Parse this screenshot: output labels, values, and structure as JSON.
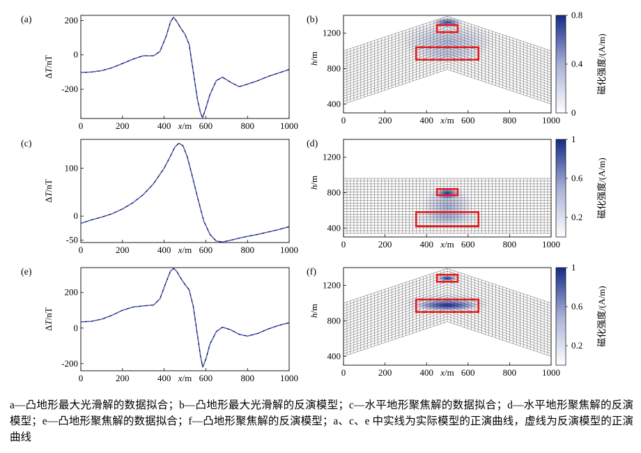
{
  "caption": "a—凸地形最大光滑解的数据拟合；b—凸地形最大光滑解的反演模型；c—水平地形聚焦解的数据拟合；d—水平地形聚焦解的反演模型；e—凸地形聚焦解的数据拟合；f—凸地形聚焦解的反演模型；a、c、e 中实线为实际模型的正演曲线，虚线为反演模型的正演曲线",
  "colors": {
    "solid": "#000000",
    "dashed": "#4d5ee8",
    "box": "#e3191b",
    "cmap_high": "#142a87",
    "grid": "#333333"
  },
  "chart_data": [
    {
      "id": "a",
      "label": "(a)",
      "type": "line",
      "xlabel_italic": "x",
      "xlabel_unit": "/m",
      "ylabel_prefix": "Δ",
      "ylabel_italic": "T",
      "ylabel_unit": "/nT",
      "xlim": [
        0,
        1000
      ],
      "ylim": [
        -370,
        230
      ],
      "xticks": [
        0,
        200,
        400,
        600,
        800,
        1000
      ],
      "yticks": [
        -200,
        0,
        200
      ],
      "x": [
        0,
        50,
        100,
        150,
        200,
        250,
        300,
        350,
        380,
        410,
        430,
        445,
        460,
        480,
        500,
        520,
        540,
        560,
        575,
        585,
        600,
        620,
        650,
        680,
        720,
        760,
        800,
        850,
        900,
        950,
        1000
      ],
      "series": [
        {
          "style": "solid",
          "values": [
            -102,
            -100,
            -92,
            -75,
            -50,
            -25,
            -5,
            -5,
            20,
            110,
            190,
            220,
            195,
            155,
            120,
            60,
            -100,
            -260,
            -340,
            -365,
            -310,
            -230,
            -150,
            -130,
            -160,
            -185,
            -170,
            -150,
            -125,
            -105,
            -85
          ]
        },
        {
          "style": "dashed",
          "values": [
            -102,
            -100,
            -92,
            -75,
            -50,
            -25,
            -5,
            -5,
            20,
            110,
            190,
            220,
            195,
            155,
            120,
            60,
            -100,
            -260,
            -340,
            -365,
            -310,
            -230,
            -150,
            -130,
            -160,
            -185,
            -170,
            -150,
            -125,
            -105,
            -85
          ]
        }
      ]
    },
    {
      "id": "b",
      "label": "(b)",
      "type": "heatmap",
      "terrain": "convex",
      "xlabel_italic": "x",
      "xlabel_unit": "/m",
      "ylabel_italic": "h",
      "ylabel_unit": "/m",
      "xlim": [
        0,
        1000
      ],
      "ylim": [
        300,
        1400
      ],
      "xticks": [
        0,
        200,
        400,
        600,
        800,
        1000
      ],
      "yticks": [
        400,
        800,
        1200
      ],
      "surface": [
        [
          0,
          1000
        ],
        [
          500,
          1390
        ],
        [
          1000,
          1000
        ]
      ],
      "depth": 600,
      "boxes": [
        {
          "x": [
            450,
            550
          ],
          "y": [
            1210,
            1290
          ]
        },
        {
          "x": [
            350,
            650
          ],
          "y": [
            900,
            1040
          ]
        }
      ],
      "blobs": [
        {
          "x": 500,
          "y": 1320,
          "rx": 70,
          "ry": 55,
          "v": 0.85
        },
        {
          "x": 500,
          "y": 1100,
          "rx": 230,
          "ry": 210,
          "v": 0.3
        },
        {
          "x": 500,
          "y": 950,
          "rx": 170,
          "ry": 90,
          "v": 0.18
        }
      ],
      "colorbar": {
        "title": "磁化强度/(A/m)",
        "min": 0,
        "max": 0.8,
        "ticks": [
          0,
          0.4,
          0.8
        ],
        "tick_labels": [
          "0",
          "0.4",
          "0.8"
        ]
      }
    },
    {
      "id": "c",
      "label": "(c)",
      "type": "line",
      "xlabel_italic": "x",
      "xlabel_unit": "/m",
      "ylabel_prefix": "Δ",
      "ylabel_italic": "T",
      "ylabel_unit": "/nT",
      "xlim": [
        0,
        1000
      ],
      "ylim": [
        -55,
        160
      ],
      "xticks": [
        0,
        200,
        400,
        600,
        800,
        1000
      ],
      "yticks": [
        -50,
        0,
        100
      ],
      "x": [
        0,
        50,
        100,
        150,
        200,
        250,
        300,
        350,
        400,
        430,
        450,
        470,
        490,
        510,
        530,
        560,
        590,
        620,
        650,
        680,
        720,
        760,
        800,
        850,
        900,
        950,
        1000
      ],
      "series": [
        {
          "style": "solid",
          "values": [
            -15,
            -8,
            -2,
            5,
            15,
            28,
            45,
            68,
            100,
            125,
            143,
            152,
            147,
            125,
            92,
            40,
            -10,
            -38,
            -52,
            -54,
            -50,
            -46,
            -42,
            -38,
            -33,
            -28,
            -22
          ]
        },
        {
          "style": "dashed",
          "values": [
            -15,
            -8,
            -2,
            5,
            15,
            28,
            45,
            68,
            100,
            125,
            143,
            152,
            147,
            125,
            92,
            40,
            -10,
            -38,
            -52,
            -54,
            -50,
            -46,
            -42,
            -38,
            -33,
            -28,
            -22
          ]
        }
      ]
    },
    {
      "id": "d",
      "label": "(d)",
      "type": "heatmap",
      "terrain": "flat",
      "xlabel_italic": "x",
      "xlabel_unit": "/m",
      "ylabel_italic": "h",
      "ylabel_unit": "/m",
      "xlim": [
        0,
        1000
      ],
      "ylim": [
        300,
        1400
      ],
      "xticks": [
        0,
        200,
        400,
        600,
        800,
        1000
      ],
      "yticks": [
        400,
        800,
        1200
      ],
      "surface": [
        [
          0,
          960
        ],
        [
          1000,
          960
        ]
      ],
      "depth": 620,
      "boxes": [
        {
          "x": [
            450,
            550
          ],
          "y": [
            770,
            840
          ]
        },
        {
          "x": [
            350,
            650
          ],
          "y": [
            420,
            580
          ]
        }
      ],
      "blobs": [
        {
          "x": 500,
          "y": 790,
          "rx": 55,
          "ry": 65,
          "v": 0.95
        },
        {
          "x": 500,
          "y": 650,
          "rx": 120,
          "ry": 230,
          "v": 0.35
        },
        {
          "x": 500,
          "y": 520,
          "rx": 170,
          "ry": 90,
          "v": 0.22
        }
      ],
      "colorbar": {
        "title": "磁化强度/(A/m)",
        "min": 0,
        "max": 1,
        "ticks": [
          0.2,
          0.6,
          1
        ],
        "tick_labels": [
          "0.2",
          "0.6",
          "1"
        ]
      }
    },
    {
      "id": "e",
      "label": "(e)",
      "type": "line",
      "xlabel_italic": "x",
      "xlabel_unit": "/m",
      "ylabel_prefix": "Δ",
      "ylabel_italic": "T",
      "ylabel_unit": "/nT",
      "xlim": [
        0,
        1000
      ],
      "ylim": [
        -240,
        340
      ],
      "xticks": [
        0,
        200,
        400,
        600,
        800,
        1000
      ],
      "yticks": [
        -200,
        0,
        200
      ],
      "x": [
        0,
        50,
        100,
        150,
        200,
        250,
        300,
        350,
        380,
        410,
        430,
        445,
        460,
        480,
        500,
        520,
        540,
        560,
        575,
        585,
        600,
        620,
        650,
        680,
        720,
        760,
        800,
        850,
        900,
        950,
        1000
      ],
      "series": [
        {
          "style": "solid",
          "values": [
            35,
            38,
            50,
            72,
            100,
            118,
            125,
            130,
            165,
            260,
            320,
            335,
            320,
            280,
            245,
            215,
            120,
            -40,
            -160,
            -220,
            -175,
            -90,
            -20,
            5,
            -10,
            -35,
            -45,
            -30,
            -5,
            15,
            30
          ]
        },
        {
          "style": "dashed",
          "values": [
            35,
            38,
            50,
            72,
            100,
            118,
            125,
            130,
            165,
            260,
            320,
            335,
            320,
            280,
            245,
            215,
            120,
            -40,
            -160,
            -220,
            -175,
            -90,
            -20,
            5,
            -10,
            -35,
            -45,
            -30,
            -5,
            15,
            30
          ]
        }
      ]
    },
    {
      "id": "f",
      "label": "(f)",
      "type": "heatmap",
      "terrain": "convex",
      "xlabel_italic": "x",
      "xlabel_unit": "/m",
      "ylabel_italic": "h",
      "ylabel_unit": "/m",
      "xlim": [
        0,
        1000
      ],
      "ylim": [
        300,
        1400
      ],
      "xticks": [
        0,
        200,
        400,
        600,
        800,
        1000
      ],
      "yticks": [
        400,
        800,
        1200
      ],
      "surface": [
        [
          0,
          1000
        ],
        [
          500,
          1390
        ],
        [
          1000,
          1000
        ]
      ],
      "depth": 600,
      "boxes": [
        {
          "x": [
            450,
            550
          ],
          "y": [
            1240,
            1320
          ]
        },
        {
          "x": [
            350,
            650
          ],
          "y": [
            900,
            1040
          ]
        }
      ],
      "blobs": [
        {
          "x": 500,
          "y": 1280,
          "rx": 50,
          "ry": 35,
          "v": 1
        },
        {
          "x": 500,
          "y": 975,
          "rx": 150,
          "ry": 60,
          "v": 1
        },
        {
          "x": 500,
          "y": 1000,
          "rx": 210,
          "ry": 110,
          "v": 0.3
        }
      ],
      "colorbar": {
        "title": "磁化强度/(A/m)",
        "min": 0,
        "max": 1,
        "ticks": [
          0.2,
          0.6,
          1
        ],
        "tick_labels": [
          "0.2",
          "0.6",
          "1"
        ]
      }
    }
  ]
}
